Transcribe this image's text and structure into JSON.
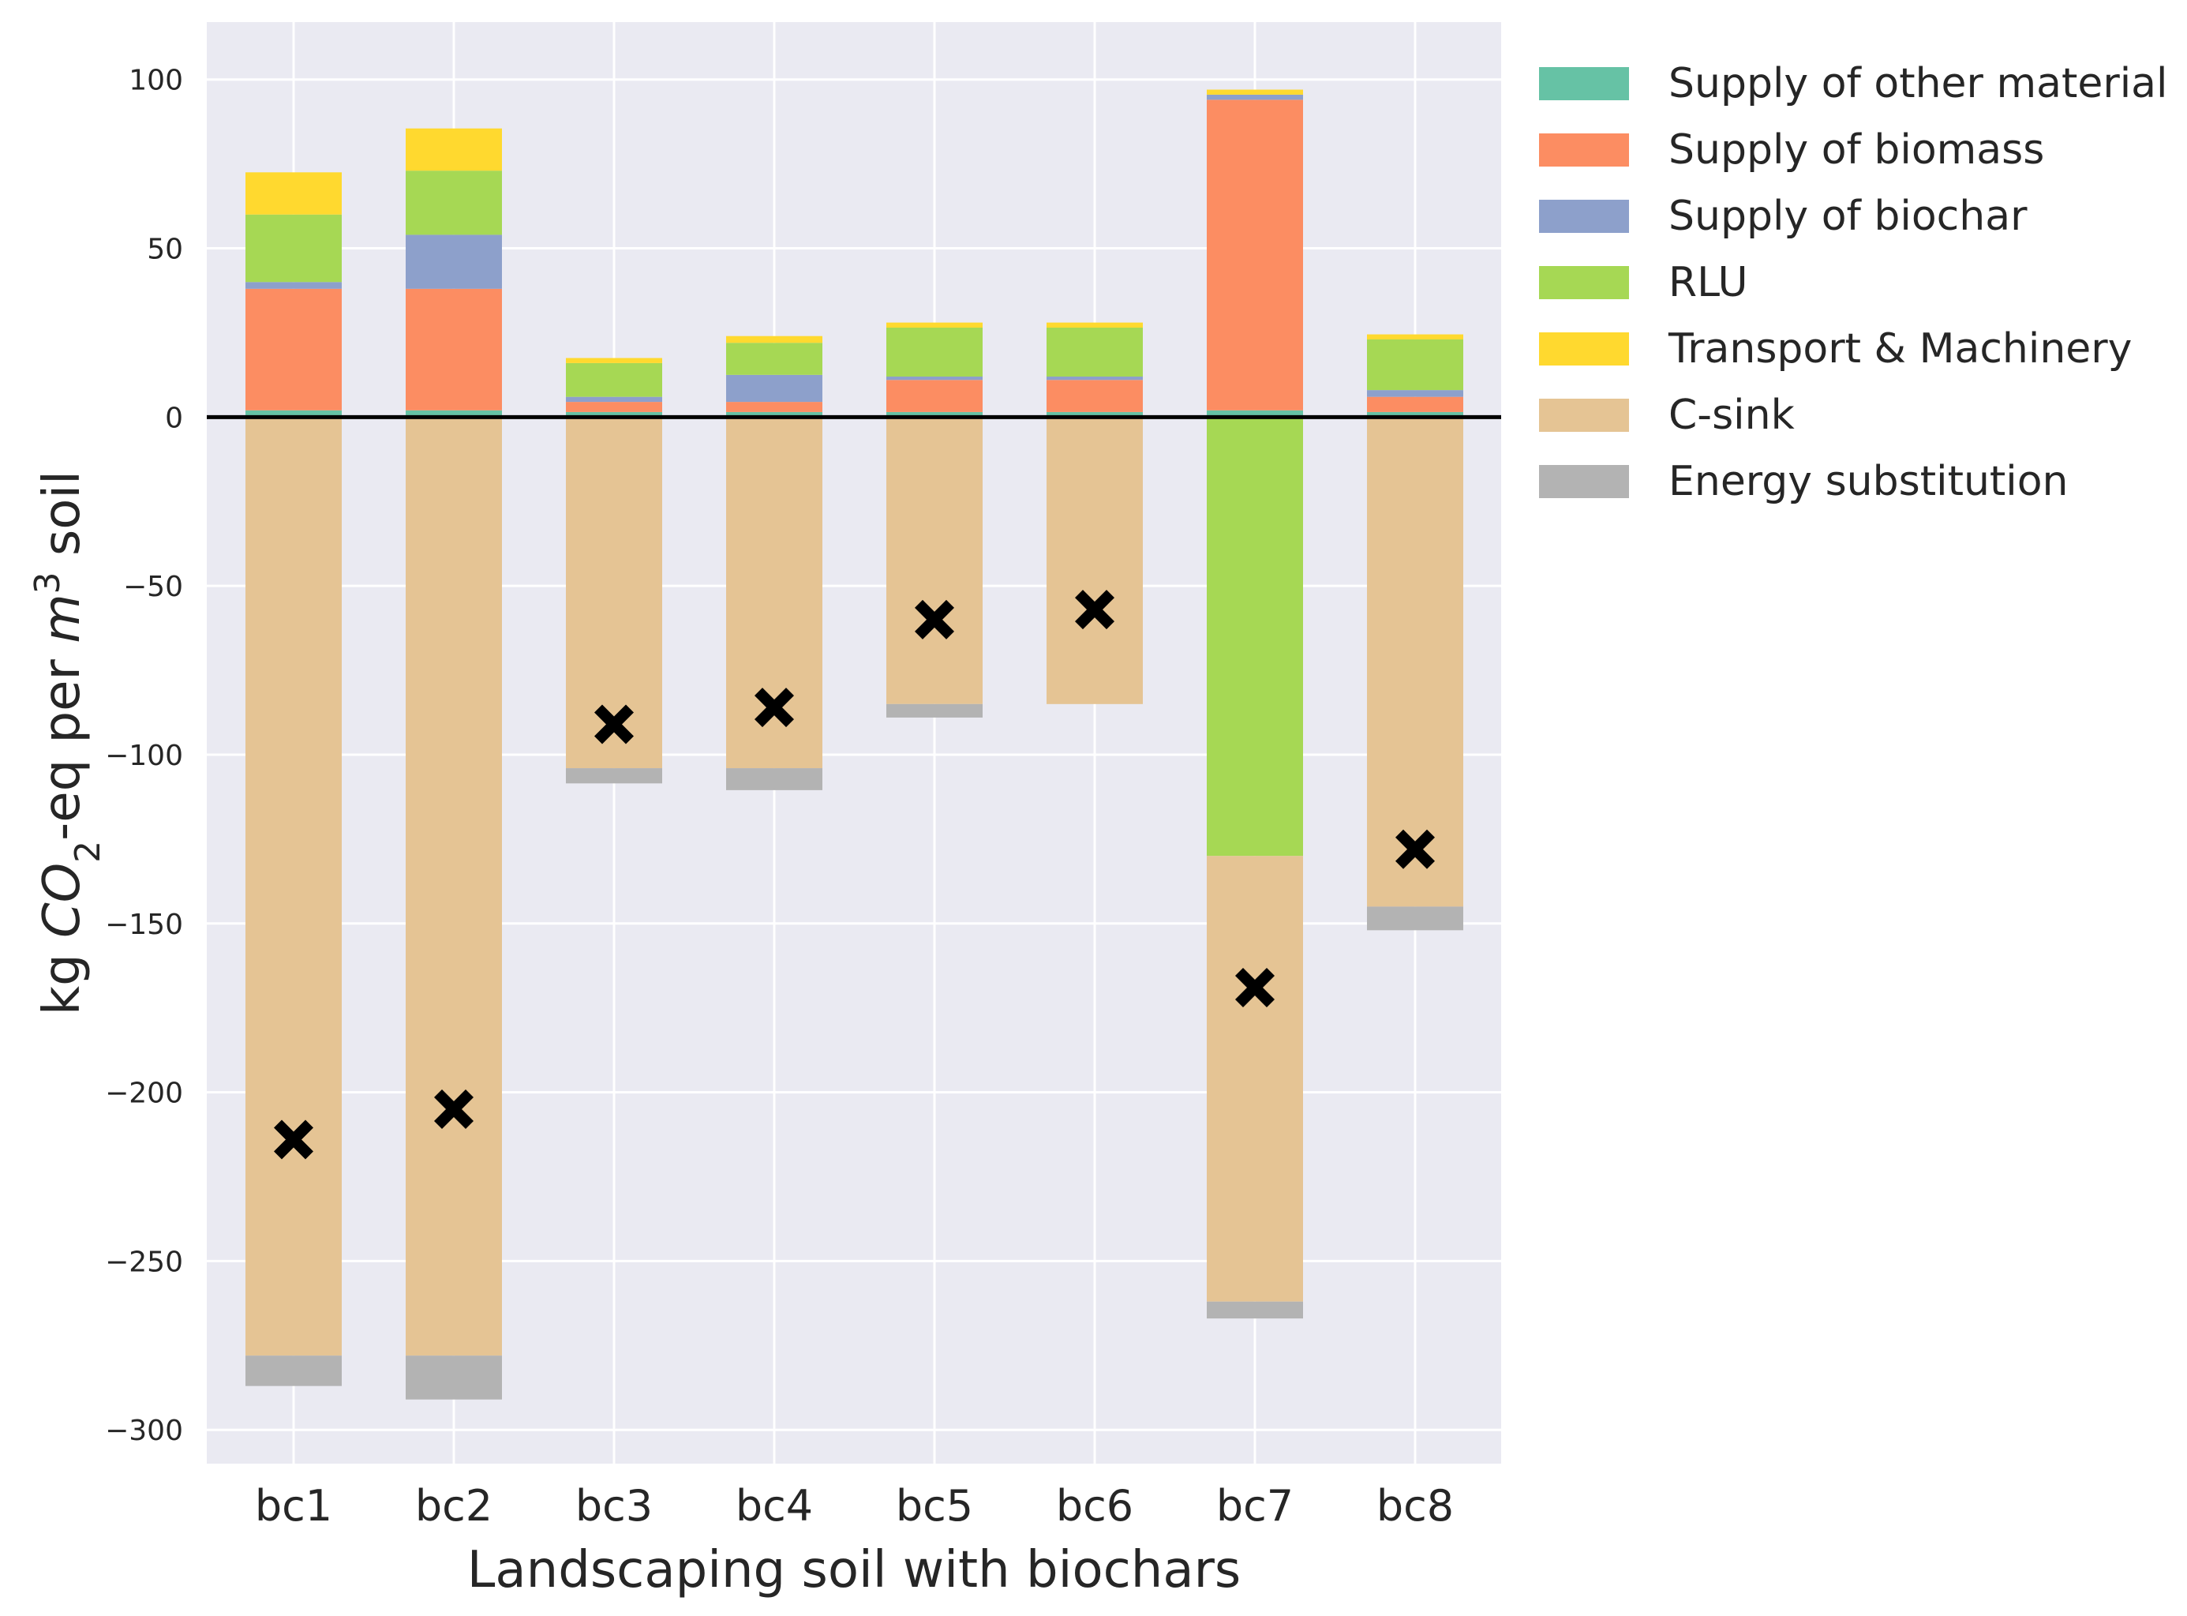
{
  "chart_data": {
    "type": "bar",
    "stacked": true,
    "xlabel": "Landscaping soil with biochars",
    "ylabel": {
      "prefix": "kg ",
      "chem": "CO",
      "sub": "2",
      "mid": "-eq per ",
      "unit": "m",
      "sup": "3",
      "suffix": " soil"
    },
    "ylim": [
      -310,
      117
    ],
    "yticks": [
      100,
      50,
      0,
      -50,
      -100,
      -150,
      -200,
      -250,
      -300
    ],
    "ytick_labels": [
      "100",
      "50",
      "0",
      "−50",
      "−100",
      "−150",
      "−200",
      "−250",
      "−300"
    ],
    "grid": true,
    "legend_position": "outside-top-right",
    "categories": [
      "bc1",
      "bc2",
      "bc3",
      "bc4",
      "bc5",
      "bc6",
      "bc7",
      "bc8"
    ],
    "series": [
      {
        "name": "Supply of other material",
        "color": "#66c2a5",
        "values": [
          2,
          2,
          1.5,
          1.5,
          1.5,
          1.5,
          2,
          1.5
        ]
      },
      {
        "name": "Supply of biomass",
        "color": "#fc8d62",
        "values": [
          36,
          36,
          3,
          3,
          9.5,
          9.5,
          92,
          4.5
        ]
      },
      {
        "name": "Supply of biochar",
        "color": "#8da0cb",
        "values": [
          2,
          16,
          1.5,
          8,
          1,
          1,
          1.5,
          2
        ]
      },
      {
        "name": "RLU",
        "color": "#a6d854",
        "values": [
          20,
          19,
          10,
          9.5,
          14.5,
          14.5,
          -130,
          15
        ]
      },
      {
        "name": "Transport & Machinery",
        "color": "#ffd92f",
        "values": [
          12.5,
          12.5,
          1.5,
          2,
          1.5,
          1.5,
          1.5,
          1.5
        ]
      },
      {
        "name": "C-sink",
        "color": "#e5c494",
        "values": [
          -278,
          -278,
          -104,
          -104,
          -85,
          -85,
          -132,
          -145
        ]
      },
      {
        "name": "Energy substitution",
        "color": "#b3b3b3",
        "values": [
          -9,
          -13,
          -4.5,
          -6.5,
          -4,
          0,
          -5,
          -7
        ]
      }
    ],
    "net_markers": {
      "marker": "X",
      "color": "#000000",
      "values": [
        -214,
        -205,
        -91,
        -86,
        -60,
        -57,
        -169,
        -128
      ]
    }
  }
}
